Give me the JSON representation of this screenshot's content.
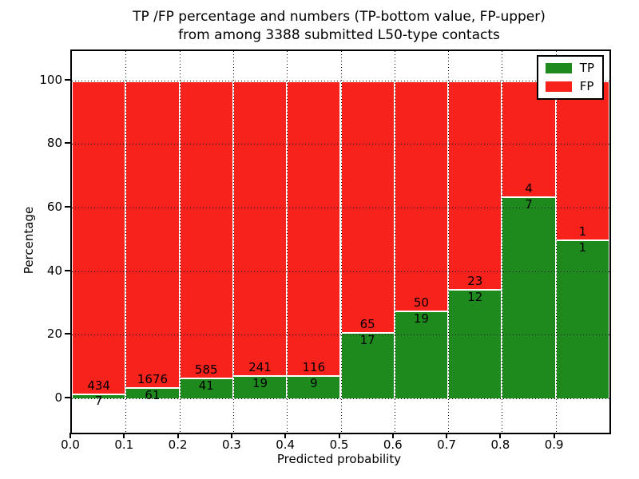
{
  "header": {
    "title_line1": "TP /FP percentage and numbers (TP-bottom value, FP-upper)",
    "title_line2": "from among 3388 submitted L50-type contacts"
  },
  "chart_data": {
    "type": "bar",
    "stacked": true,
    "normalized": "each bar totals 100%",
    "title": "TP /FP percentage and numbers (TP-bottom value, FP-upper) from among 3388 submitted L50-type contacts",
    "total_contacts": 3388,
    "xlabel": "Predicted probability",
    "ylabel": "Percentage",
    "bin_edges": [
      0.0,
      0.1,
      0.2,
      0.3,
      0.4,
      0.5,
      0.6,
      0.7,
      0.8,
      0.9,
      1.0
    ],
    "series": [
      {
        "name": "TP",
        "color": "#1e8a1e",
        "counts": [
          7,
          61,
          41,
          19,
          9,
          17,
          19,
          12,
          7,
          1
        ]
      },
      {
        "name": "FP",
        "color": "#f8221c",
        "counts": [
          434,
          1676,
          585,
          241,
          116,
          65,
          50,
          23,
          4,
          1
        ]
      }
    ],
    "tp_percent_by_bin": [
      1.59,
      3.51,
      6.55,
      7.31,
      7.2,
      20.73,
      27.54,
      34.29,
      63.64,
      50.0
    ],
    "yticks": [
      0,
      20,
      40,
      60,
      80,
      100
    ],
    "xtick_labels": [
      "0.0",
      "0.1",
      "0.2",
      "0.3",
      "0.4",
      "0.5",
      "0.6",
      "0.7",
      "0.8",
      "0.9"
    ],
    "xlim": [
      0.0,
      1.0
    ],
    "ylim": [
      -10.6,
      109.5
    ],
    "grid": "dotted black, both axes, drawn above bars",
    "legend": {
      "position": "upper right",
      "entries": [
        {
          "label": "TP",
          "color": "#1e8a1e"
        },
        {
          "label": "FP",
          "color": "#f8221c"
        }
      ]
    }
  }
}
